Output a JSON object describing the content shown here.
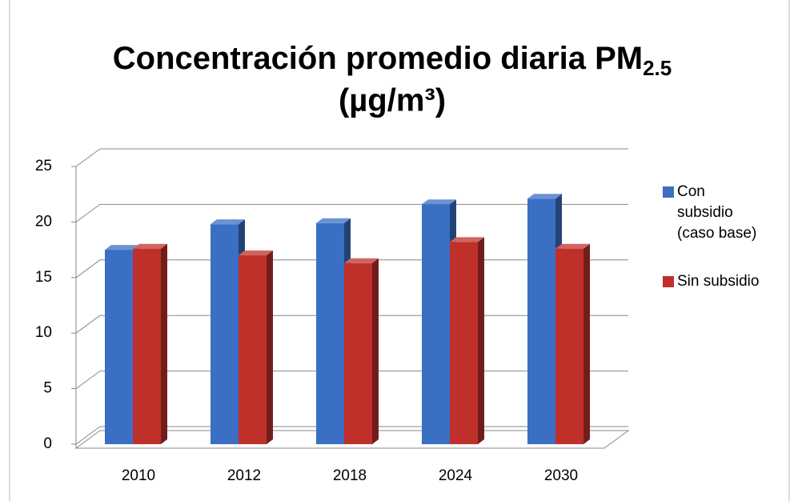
{
  "chart_data": {
    "type": "bar3d",
    "title": "Concentración promedio diaria PM",
    "title_subscript": "2.5",
    "title_line2": "(µg/m³)",
    "categories": [
      "2010",
      "2012",
      "2018",
      "2024",
      "2030"
    ],
    "series": [
      {
        "name": "Con subsidio (caso base)",
        "color": "#3a6fc4",
        "values": [
          17.5,
          19.8,
          19.9,
          21.6,
          22.1
        ]
      },
      {
        "name": "Sin subsidio",
        "color": "#c0302b",
        "values": [
          17.6,
          17.0,
          16.3,
          18.2,
          17.6
        ]
      }
    ],
    "ylim": [
      0,
      25
    ],
    "yticks": [
      0,
      5,
      10,
      15,
      20,
      25
    ],
    "grid": true,
    "legend": "right"
  }
}
